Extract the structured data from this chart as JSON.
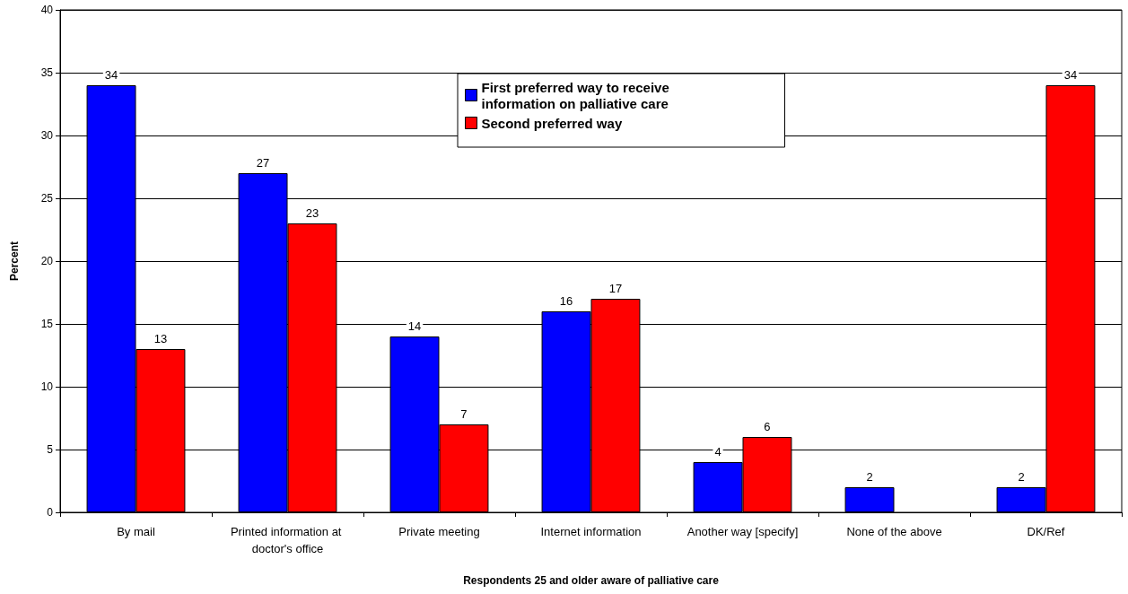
{
  "chart_data": {
    "type": "bar",
    "xlabel": "Respondents 25 and older aware of palliative care",
    "ylabel": "Percent",
    "categories": [
      "By mail",
      "Printed information at doctor's office",
      "Private meeting",
      "Internet information",
      "Another way [specify]",
      "None of the above",
      "DK/Ref"
    ],
    "series": [
      {
        "name": "First preferred way to receive information on palliative care",
        "color": "#0000ff",
        "values": [
          34,
          27,
          14,
          16,
          4,
          2,
          2
        ]
      },
      {
        "name": "Second preferred way",
        "color": "#ff0000",
        "values": [
          13,
          23,
          7,
          17,
          6,
          null,
          34
        ]
      }
    ],
    "ylim": [
      0,
      40
    ],
    "yticks": [
      0,
      5,
      10,
      15,
      20,
      25,
      30,
      35,
      40
    ],
    "grid": "y",
    "legend": "top",
    "data_labels": true
  }
}
